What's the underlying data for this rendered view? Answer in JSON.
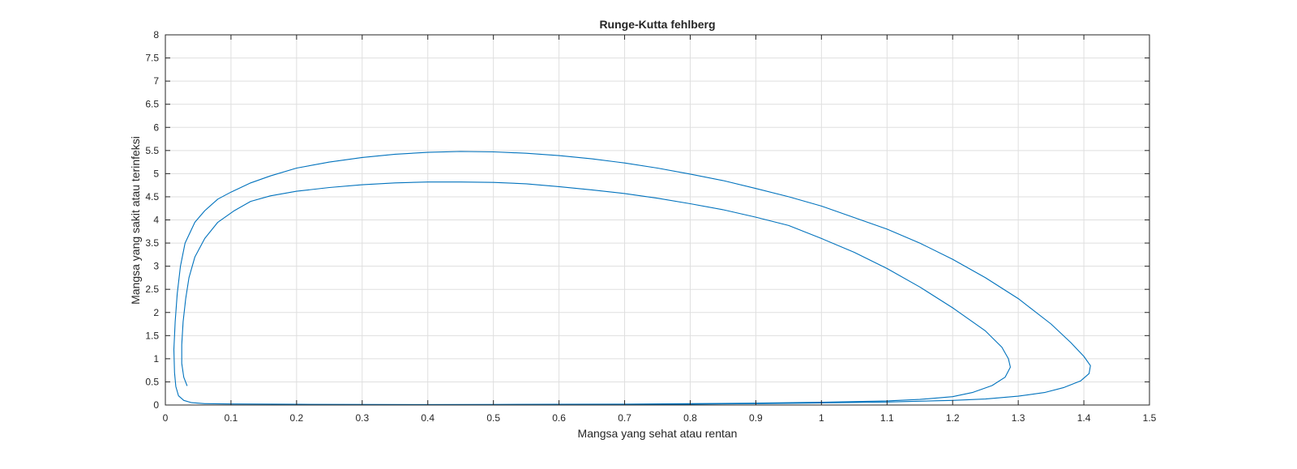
{
  "chart_data": {
    "type": "line",
    "title": "Runge-Kutta fehlberg",
    "xlabel": "Mangsa yang sehat atau rentan",
    "ylabel": "Mangsa yang sakit atau terinfeksi",
    "xlim": [
      0,
      1.5
    ],
    "ylim": [
      0,
      8
    ],
    "xticks": [
      "0",
      "0.1",
      "0.2",
      "0.3",
      "0.4",
      "0.5",
      "0.6",
      "0.7",
      "0.8",
      "0.9",
      "1",
      "1.1",
      "1.2",
      "1.3",
      "1.4",
      "1.5"
    ],
    "yticks": [
      "0",
      "0.5",
      "1",
      "1.5",
      "2",
      "2.5",
      "3",
      "3.5",
      "4",
      "4.5",
      "5",
      "5.5",
      "6",
      "6.5",
      "7",
      "7.5",
      "8"
    ],
    "grid": true,
    "line_color": "#0072BD",
    "series": [
      {
        "points": [
          [
            0.033,
            0.42
          ],
          [
            0.028,
            0.6
          ],
          [
            0.025,
            0.9
          ],
          [
            0.025,
            1.3
          ],
          [
            0.027,
            1.8
          ],
          [
            0.031,
            2.3
          ],
          [
            0.036,
            2.75
          ],
          [
            0.045,
            3.2
          ],
          [
            0.06,
            3.6
          ],
          [
            0.08,
            3.95
          ],
          [
            0.105,
            4.2
          ],
          [
            0.13,
            4.4
          ],
          [
            0.16,
            4.52
          ],
          [
            0.2,
            4.62
          ],
          [
            0.25,
            4.7
          ],
          [
            0.3,
            4.76
          ],
          [
            0.35,
            4.8
          ],
          [
            0.4,
            4.82
          ],
          [
            0.45,
            4.82
          ],
          [
            0.5,
            4.81
          ],
          [
            0.55,
            4.78
          ],
          [
            0.6,
            4.72
          ],
          [
            0.65,
            4.65
          ],
          [
            0.7,
            4.57
          ],
          [
            0.75,
            4.47
          ],
          [
            0.8,
            4.35
          ],
          [
            0.85,
            4.22
          ],
          [
            0.9,
            4.06
          ],
          [
            0.95,
            3.88
          ],
          [
            1.0,
            3.6
          ],
          [
            1.05,
            3.3
          ],
          [
            1.1,
            2.95
          ],
          [
            1.15,
            2.55
          ],
          [
            1.2,
            2.1
          ],
          [
            1.25,
            1.6
          ],
          [
            1.275,
            1.25
          ],
          [
            1.285,
            1.0
          ],
          [
            1.288,
            0.82
          ],
          [
            1.28,
            0.6
          ],
          [
            1.26,
            0.42
          ],
          [
            1.23,
            0.27
          ],
          [
            1.2,
            0.18
          ],
          [
            1.15,
            0.12
          ],
          [
            1.1,
            0.09
          ],
          [
            1.0,
            0.06
          ],
          [
            0.9,
            0.04
          ],
          [
            0.8,
            0.03
          ],
          [
            0.7,
            0.02
          ],
          [
            0.6,
            0.015
          ],
          [
            0.5,
            0.012
          ],
          [
            0.4,
            0.01
          ],
          [
            0.3,
            0.012
          ],
          [
            0.2,
            0.015
          ],
          [
            0.1,
            0.022
          ],
          [
            0.06,
            0.03
          ],
          [
            0.04,
            0.05
          ],
          [
            0.028,
            0.1
          ],
          [
            0.02,
            0.2
          ],
          [
            0.016,
            0.4
          ],
          [
            0.014,
            0.7
          ],
          [
            0.013,
            1.2
          ],
          [
            0.015,
            1.8
          ],
          [
            0.018,
            2.4
          ],
          [
            0.023,
            3.0
          ],
          [
            0.03,
            3.5
          ],
          [
            0.045,
            3.95
          ],
          [
            0.06,
            4.2
          ],
          [
            0.08,
            4.45
          ],
          [
            0.1,
            4.6
          ],
          [
            0.13,
            4.8
          ],
          [
            0.16,
            4.95
          ],
          [
            0.2,
            5.12
          ],
          [
            0.25,
            5.25
          ],
          [
            0.3,
            5.35
          ],
          [
            0.35,
            5.42
          ],
          [
            0.4,
            5.46
          ],
          [
            0.45,
            5.48
          ],
          [
            0.5,
            5.47
          ],
          [
            0.55,
            5.44
          ],
          [
            0.6,
            5.39
          ],
          [
            0.65,
            5.32
          ],
          [
            0.7,
            5.23
          ],
          [
            0.75,
            5.12
          ],
          [
            0.8,
            4.99
          ],
          [
            0.85,
            4.85
          ],
          [
            0.9,
            4.68
          ],
          [
            0.95,
            4.5
          ],
          [
            1.0,
            4.3
          ],
          [
            1.05,
            4.05
          ],
          [
            1.1,
            3.8
          ],
          [
            1.15,
            3.5
          ],
          [
            1.2,
            3.15
          ],
          [
            1.25,
            2.75
          ],
          [
            1.3,
            2.3
          ],
          [
            1.35,
            1.75
          ],
          [
            1.38,
            1.35
          ],
          [
            1.4,
            1.05
          ],
          [
            1.41,
            0.85
          ],
          [
            1.408,
            0.68
          ],
          [
            1.395,
            0.52
          ],
          [
            1.37,
            0.38
          ],
          [
            1.34,
            0.27
          ],
          [
            1.3,
            0.19
          ],
          [
            1.25,
            0.13
          ],
          [
            1.2,
            0.1
          ],
          [
            1.1,
            0.065
          ],
          [
            1.0,
            0.045
          ],
          [
            0.9,
            0.03
          ],
          [
            0.8,
            0.02
          ],
          [
            0.7,
            0.015
          ],
          [
            0.6,
            0.012
          ],
          [
            0.5,
            0.01
          ],
          [
            0.4,
            0.01
          ],
          [
            0.3,
            0.012
          ],
          [
            0.2,
            0.015
          ]
        ]
      }
    ]
  }
}
